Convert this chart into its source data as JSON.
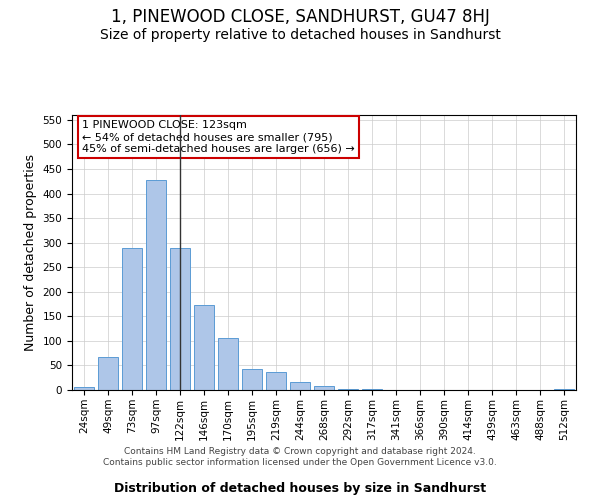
{
  "title": "1, PINEWOOD CLOSE, SANDHURST, GU47 8HJ",
  "subtitle": "Size of property relative to detached houses in Sandhurst",
  "xlabel": "Distribution of detached houses by size in Sandhurst",
  "ylabel": "Number of detached properties",
  "footer_line1": "Contains HM Land Registry data © Crown copyright and database right 2024.",
  "footer_line2": "Contains public sector information licensed under the Open Government Licence v3.0.",
  "categories": [
    "24sqm",
    "49sqm",
    "73sqm",
    "97sqm",
    "122sqm",
    "146sqm",
    "170sqm",
    "195sqm",
    "219sqm",
    "244sqm",
    "268sqm",
    "292sqm",
    "317sqm",
    "341sqm",
    "366sqm",
    "390sqm",
    "414sqm",
    "439sqm",
    "463sqm",
    "488sqm",
    "512sqm"
  ],
  "values": [
    7,
    68,
    290,
    427,
    290,
    173,
    105,
    43,
    37,
    17,
    8,
    3,
    2,
    0,
    0,
    1,
    0,
    0,
    0,
    0,
    2
  ],
  "bar_color": "#aec6e8",
  "bar_edge_color": "#5b9bd5",
  "highlight_bar_index": 4,
  "highlight_line_color": "#333333",
  "annotation_text": "1 PINEWOOD CLOSE: 123sqm\n← 54% of detached houses are smaller (795)\n45% of semi-detached houses are larger (656) →",
  "annotation_box_color": "#ffffff",
  "annotation_box_edge_color": "#cc0000",
  "ylim": [
    0,
    560
  ],
  "yticks": [
    0,
    50,
    100,
    150,
    200,
    250,
    300,
    350,
    400,
    450,
    500,
    550
  ],
  "bg_color": "#ffffff",
  "grid_color": "#cccccc",
  "title_fontsize": 12,
  "subtitle_fontsize": 10,
  "axis_label_fontsize": 9,
  "tick_fontsize": 7.5,
  "annotation_fontsize": 8,
  "footer_fontsize": 6.5
}
